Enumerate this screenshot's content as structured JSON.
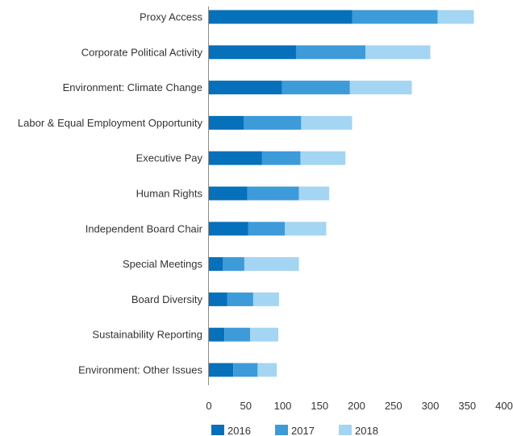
{
  "chart_data": {
    "type": "bar",
    "orientation": "horizontal",
    "stacked": true,
    "title": "",
    "xlabel": "",
    "ylabel": "",
    "xlim": [
      0,
      400
    ],
    "x_ticks": [
      "0",
      "50",
      "100",
      "150",
      "200",
      "250",
      "300",
      "350",
      "400"
    ],
    "grid": false,
    "legend_position": "bottom",
    "categories": [
      "Proxy Access",
      "Corporate Political Activity",
      "Environment: Climate Change",
      "Labor & Equal Employment Opportunity",
      "Executive Pay",
      "Human Rights",
      "Independent Board Chair",
      "Special Meetings",
      "Board Diversity",
      "Sustainability Reporting",
      "Environment: Other Issues"
    ],
    "series": [
      {
        "name": "2016",
        "color": "#0670ba",
        "values": [
          194,
          118,
          99,
          47,
          72,
          52,
          53,
          19,
          25,
          21,
          33
        ]
      },
      {
        "name": "2017",
        "color": "#3d9bd9",
        "values": [
          116,
          94,
          92,
          78,
          52,
          70,
          50,
          29,
          35,
          35,
          33
        ]
      },
      {
        "name": "2018",
        "color": "#a4d5f3",
        "values": [
          49,
          88,
          84,
          69,
          61,
          41,
          56,
          74,
          35,
          38,
          26
        ]
      }
    ]
  }
}
